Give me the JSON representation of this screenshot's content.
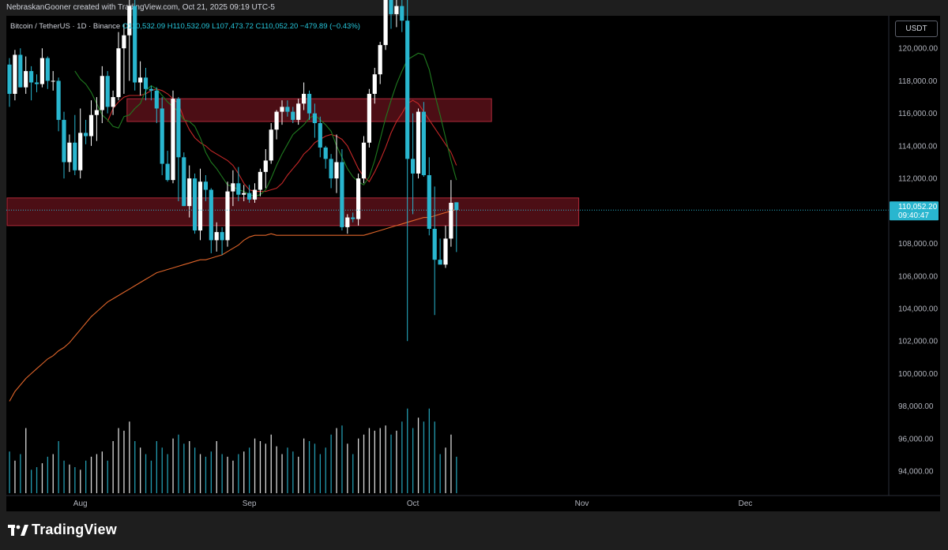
{
  "header": {
    "attribution": "NebraskanGooner created with TradingView.com, Oct 21, 2025 09:19 UTC-5"
  },
  "symbol": {
    "name": "Bitcoin / TetherUS · 1D · Binance",
    "ohlc": "O110,532.09 H110,532.09 L107,473.72 C110,052.20 −479.89 (−0.43%)"
  },
  "currency": "USDT",
  "footer": {
    "brand": "TradingView"
  },
  "colors": {
    "up": "#ffffff",
    "down": "#29b6cf",
    "zone": "#8b1a26",
    "ema_short": "#1f7a1f",
    "ema_mid": "#c62828",
    "ema_long": "#e0652a",
    "price_label": "#29b6cf"
  },
  "chart_data": {
    "type": "candlestick",
    "symbol": "BTCUSDT",
    "timeframe": "1D",
    "y_axis": {
      "ticks": [
        94000,
        96000,
        98000,
        100000,
        102000,
        104000,
        106000,
        108000,
        110000,
        112000,
        114000,
        116000,
        118000,
        120000
      ],
      "tick_labels": [
        "94,000.00",
        "96,000.00",
        "98,000.00",
        "100,000.00",
        "102,000.00",
        "104,000.00",
        "106,000.00",
        "108,000.00",
        "110,000.00",
        "112,000.00",
        "114,000.00",
        "116,000.00",
        "118,000.00",
        "120,000.00"
      ],
      "range": [
        92500,
        122000
      ],
      "side": "right"
    },
    "x_axis": {
      "labels": [
        {
          "label": "Aug",
          "day_index": 13
        },
        {
          "label": "Sep",
          "day_index": 44
        },
        {
          "label": "Oct",
          "day_index": 74
        },
        {
          "label": "Nov",
          "day_index": 105
        },
        {
          "label": "Dec",
          "day_index": 135
        }
      ]
    },
    "last_price": {
      "value": 110052.2,
      "label": "110,052.20",
      "countdown": "09:40:47"
    },
    "zones": [
      {
        "from_day": 22,
        "to_day": 88,
        "low": 115500,
        "high": 116900
      },
      {
        "from_day": 0,
        "to_day": 104,
        "low": 109100,
        "high": 110800
      }
    ],
    "candles": [
      [
        119000,
        119400,
        116400,
        117200
      ],
      [
        117200,
        119900,
        116800,
        119600
      ],
      [
        119600,
        120000,
        117600,
        117600
      ],
      [
        117600,
        119500,
        117200,
        118600
      ],
      [
        118600,
        118900,
        116800,
        117900
      ],
      [
        117900,
        118400,
        117300,
        117800
      ],
      [
        117800,
        120000,
        117600,
        119400
      ],
      [
        119400,
        119500,
        117500,
        118000
      ],
      [
        118000,
        118600,
        117400,
        118000
      ],
      [
        118000,
        118200,
        114900,
        115600
      ],
      [
        115600,
        116100,
        112000,
        113000
      ],
      [
        113000,
        114700,
        112400,
        114200
      ],
      [
        114200,
        115900,
        112200,
        112500
      ],
      [
        112500,
        116300,
        112000,
        114800
      ],
      [
        114800,
        115600,
        114100,
        114600
      ],
      [
        114600,
        116800,
        114000,
        115900
      ],
      [
        115900,
        117000,
        114300,
        116200
      ],
      [
        116200,
        118900,
        115400,
        118300
      ],
      [
        118300,
        118600,
        116000,
        116400
      ],
      [
        116400,
        117400,
        115900,
        117000
      ],
      [
        117000,
        121000,
        116800,
        120000
      ],
      [
        120000,
        121500,
        117200,
        120800
      ],
      [
        120800,
        124100,
        118000,
        122600
      ],
      [
        122600,
        124400,
        117400,
        117900
      ],
      [
        117900,
        119200,
        117100,
        118200
      ],
      [
        118200,
        118800,
        116800,
        117500
      ],
      [
        117500,
        117700,
        116800,
        117400
      ],
      [
        117400,
        117600,
        115400,
        116300
      ],
      [
        116300,
        117000,
        112200,
        112900
      ],
      [
        112900,
        113700,
        111800,
        111900
      ],
      [
        111900,
        117400,
        111700,
        116900
      ],
      [
        116900,
        117000,
        110600,
        113300
      ],
      [
        113300,
        113600,
        110300,
        110300
      ],
      [
        110300,
        112800,
        109600,
        112000
      ],
      [
        112000,
        112300,
        108600,
        108800
      ],
      [
        108800,
        112600,
        108200,
        111800
      ],
      [
        111800,
        112200,
        110600,
        111300
      ],
      [
        111300,
        111400,
        107400,
        108200
      ],
      [
        108200,
        109300,
        107500,
        108700
      ],
      [
        108700,
        109000,
        107300,
        108200
      ],
      [
        108200,
        111800,
        107800,
        111200
      ],
      [
        111200,
        112500,
        110300,
        111700
      ],
      [
        111700,
        112700,
        110600,
        111000
      ],
      [
        111000,
        111600,
        110600,
        111100
      ],
      [
        111100,
        111600,
        110500,
        110700
      ],
      [
        110700,
        111700,
        110500,
        111300
      ],
      [
        111300,
        112600,
        110900,
        112400
      ],
      [
        112400,
        113800,
        111400,
        113100
      ],
      [
        113100,
        115400,
        112900,
        115000
      ],
      [
        115000,
        116200,
        114400,
        116100
      ],
      [
        116100,
        116800,
        115300,
        116400
      ],
      [
        116400,
        116800,
        115800,
        116100
      ],
      [
        116100,
        116400,
        115400,
        115600
      ],
      [
        115600,
        116900,
        115300,
        116600
      ],
      [
        116600,
        117900,
        116200,
        117200
      ],
      [
        117200,
        117400,
        115600,
        116000
      ],
      [
        116000,
        116600,
        114500,
        115400
      ],
      [
        115400,
        115800,
        113300,
        113900
      ],
      [
        113900,
        114000,
        112600,
        113200
      ],
      [
        113200,
        113500,
        111400,
        112000
      ],
      [
        112000,
        114700,
        111100,
        113000
      ],
      [
        113000,
        113800,
        108800,
        109000
      ],
      [
        109000,
        109800,
        108600,
        109600
      ],
      [
        109600,
        109900,
        109300,
        109500
      ],
      [
        109500,
        112300,
        109100,
        112000
      ],
      [
        112000,
        114600,
        111700,
        114200
      ],
      [
        114200,
        117500,
        113900,
        117200
      ],
      [
        117200,
        118800,
        116600,
        118400
      ],
      [
        118400,
        120400,
        117800,
        120200
      ],
      [
        120200,
        123900,
        119900,
        123400
      ],
      [
        123400,
        125000,
        121200,
        122100
      ],
      [
        122100,
        125300,
        121300,
        122600
      ],
      [
        122600,
        124400,
        121000,
        121700
      ],
      [
        121700,
        123200,
        102000,
        113200
      ],
      [
        113200,
        116000,
        109800,
        112300
      ],
      [
        112300,
        116300,
        112000,
        116100
      ],
      [
        116100,
        116700,
        112100,
        112200
      ],
      [
        112200,
        113300,
        108500,
        108900
      ],
      [
        108900,
        111500,
        103600,
        107000
      ],
      [
        107000,
        108300,
        106800,
        106700
      ],
      [
        106700,
        109100,
        106500,
        108300
      ],
      [
        108300,
        111900,
        107800,
        110500
      ],
      [
        110532.09,
        110532.09,
        107473.72,
        110052.2
      ]
    ],
    "volume": [
      0.32,
      0.25,
      0.3,
      0.5,
      0.18,
      0.2,
      0.23,
      0.28,
      0.3,
      0.4,
      0.25,
      0.22,
      0.2,
      0.18,
      0.25,
      0.28,
      0.3,
      0.32,
      0.25,
      0.4,
      0.5,
      0.48,
      0.55,
      0.4,
      0.35,
      0.3,
      0.25,
      0.4,
      0.35,
      0.3,
      0.42,
      0.45,
      0.38,
      0.4,
      0.35,
      0.3,
      0.28,
      0.32,
      0.4,
      0.3,
      0.28,
      0.25,
      0.3,
      0.32,
      0.35,
      0.42,
      0.4,
      0.38,
      0.45,
      0.36,
      0.3,
      0.35,
      0.32,
      0.28,
      0.42,
      0.4,
      0.38,
      0.3,
      0.35,
      0.45,
      0.5,
      0.52,
      0.38,
      0.3,
      0.42,
      0.45,
      0.5,
      0.48,
      0.5,
      0.52,
      0.45,
      0.48,
      0.55,
      0.65,
      0.5,
      0.58,
      0.55,
      0.65,
      0.55,
      0.3,
      0.35,
      0.45,
      0.28
    ],
    "ema_short": [
      118600,
      118100,
      117800,
      117300,
      116600,
      115900,
      115600,
      115200,
      115100,
      115800,
      115900,
      116300,
      116600,
      117400,
      117700,
      117500,
      117100,
      116700,
      116400,
      116100,
      115600,
      115500,
      115200,
      114500,
      113600,
      113000,
      112600,
      112100,
      111600,
      111500,
      111300,
      111200,
      111000,
      110900,
      111000,
      111300,
      112000,
      112800,
      113500,
      114100,
      114700,
      115000,
      115300,
      115700,
      115900,
      115600,
      115300,
      114900,
      114000,
      113300,
      112600,
      112100,
      111800,
      111600,
      112100,
      113100,
      114400,
      115700,
      116800,
      117800,
      118600,
      119300,
      119500,
      119700,
      119600,
      118700,
      117200,
      115900,
      114500,
      113100,
      111900
    ],
    "ema_mid": [
      115500,
      116300,
      116700,
      117000,
      117100,
      117100,
      117100,
      117200,
      117400,
      117500,
      117400,
      117200,
      116900,
      116600,
      115700,
      115000,
      114500,
      114200,
      114000,
      113700,
      113500,
      113300,
      113100,
      112800,
      112300,
      111700,
      111300,
      111200,
      111200,
      111200,
      111300,
      111400,
      111700,
      112200,
      112600,
      113000,
      113500,
      113800,
      114200,
      114400,
      114600,
      114700,
      114600,
      114400,
      114000,
      113300,
      112600,
      112100,
      111800,
      112400,
      113100,
      113900,
      114800,
      115500,
      116000,
      116600,
      116800,
      116600,
      116100,
      115600,
      115100,
      114600,
      114100,
      113600,
      112800
    ],
    "ema_long": [
      98300,
      98900,
      99300,
      99700,
      100000,
      100300,
      100600,
      100900,
      101100,
      101400,
      101600,
      101900,
      102300,
      102700,
      103100,
      103500,
      103800,
      104100,
      104400,
      104600,
      104800,
      105000,
      105200,
      105400,
      105600,
      105800,
      106000,
      106200,
      106300,
      106400,
      106500,
      106600,
      106700,
      106800,
      106900,
      107000,
      107000,
      107100,
      107200,
      107300,
      107500,
      107700,
      107900,
      108200,
      108400,
      108500,
      108500,
      108500,
      108600,
      108500,
      108500,
      108500,
      108500,
      108500,
      108500,
      108500,
      108500,
      108500,
      108500,
      108500,
      108500,
      108500,
      108500,
      108500,
      108500,
      108500,
      108600,
      108700,
      108800,
      108900,
      109000,
      109100,
      109200,
      109300,
      109400,
      109500,
      109600,
      109600,
      109700,
      109800,
      109900,
      110000,
      110100
    ]
  }
}
